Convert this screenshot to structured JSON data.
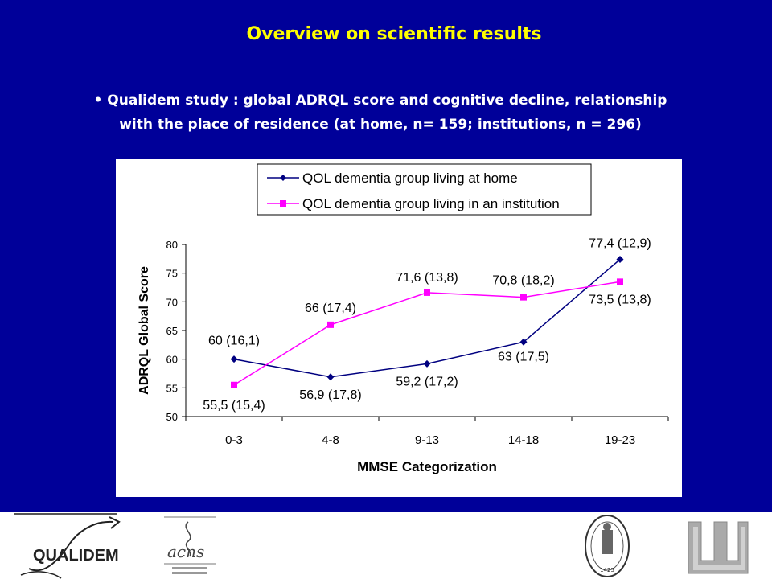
{
  "slide": {
    "title": "Overview on scientific results",
    "subtitle_line1": "• Qualidem study : global ADRQL score and cognitive decline, relationship",
    "subtitle_line2": "with the  place of residence (at home, n= 159; institutions, n = 296)"
  },
  "colors": {
    "background": "#000099",
    "title": "#ffff00",
    "series_home": "#000080",
    "series_institution": "#ff00ff"
  },
  "chart_data": {
    "type": "line",
    "categories": [
      "0-3",
      "4-8",
      "9-13",
      "14-18",
      "19-23"
    ],
    "xlabel": "MMSE Categorization",
    "ylabel": "ADRQL Global Score",
    "ylim": [
      50,
      80
    ],
    "yticks": [
      50,
      55,
      60,
      65,
      70,
      75,
      80
    ],
    "grid": false,
    "legend_position": "top",
    "series": [
      {
        "name": "QOL dementia group living at home",
        "values": [
          60,
          56.9,
          59.2,
          63,
          77.4
        ],
        "labels": [
          "60 (16,1)",
          "56,9 (17,8)",
          "59,2 (17,2)",
          "63 (17,5)",
          "77,4 (12,9)"
        ],
        "marker": "diamond",
        "color": "#000080"
      },
      {
        "name": "QOL dementia group living in an institution",
        "values": [
          55.5,
          66,
          71.6,
          70.8,
          73.5
        ],
        "labels": [
          "55,5 (15,4)",
          "66 (17,4)",
          "71,6 (13,8)",
          "70,8 (18,2)",
          "73,5 (13,8)"
        ],
        "marker": "square",
        "color": "#ff00ff"
      }
    ]
  },
  "footer": {
    "logo_qualidem": "QUALIDEM",
    "seal_year": "1425"
  }
}
